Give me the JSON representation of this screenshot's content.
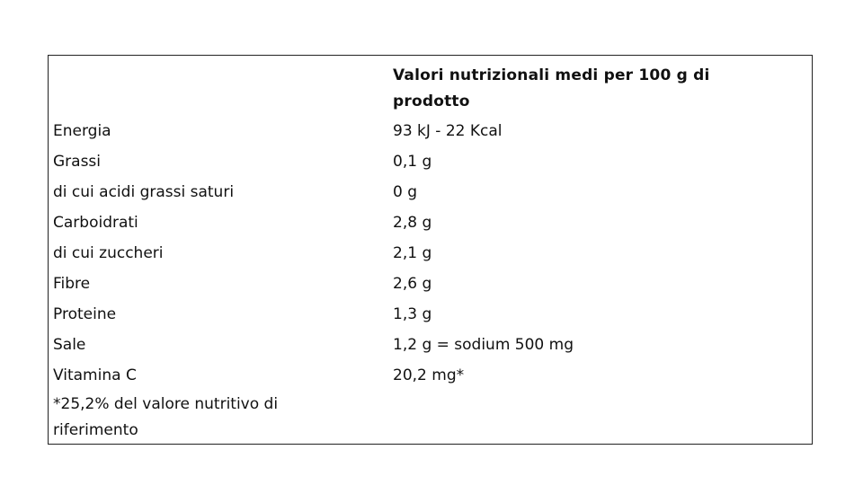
{
  "table": {
    "header_value": "Valori nutrizionali medi per 100 g di prodotto",
    "rows": [
      {
        "label": "Energia",
        "value": "93 kJ - 22 Kcal"
      },
      {
        "label": "Grassi",
        "value": "0,1 g"
      },
      {
        "label": "di cui acidi grassi saturi",
        "value": "0 g"
      },
      {
        "label": "Carboidrati",
        "value": "2,8 g"
      },
      {
        "label": "di cui zuccheri",
        "value": "2,1 g"
      },
      {
        "label": "Fibre",
        "value": "2,6 g"
      },
      {
        "label": "Proteine",
        "value": "1,3 g"
      },
      {
        "label": "Sale",
        "value": "1,2 g = sodium 500 mg"
      },
      {
        "label": "Vitamina C",
        "value": "20,2 mg*"
      }
    ],
    "footnote": "*25,2% del valore nutritivo di riferimento"
  }
}
